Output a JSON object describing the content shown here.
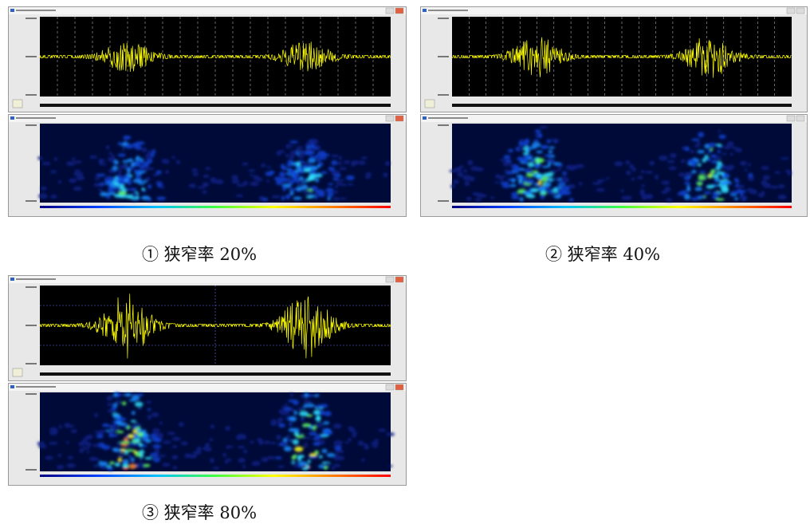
{
  "panels": [
    {
      "caption": "① 狭窄率 20%"
    },
    {
      "caption": "② 狭窄率 40%"
    },
    {
      "caption": "③ 狭窄率 80%"
    }
  ]
}
